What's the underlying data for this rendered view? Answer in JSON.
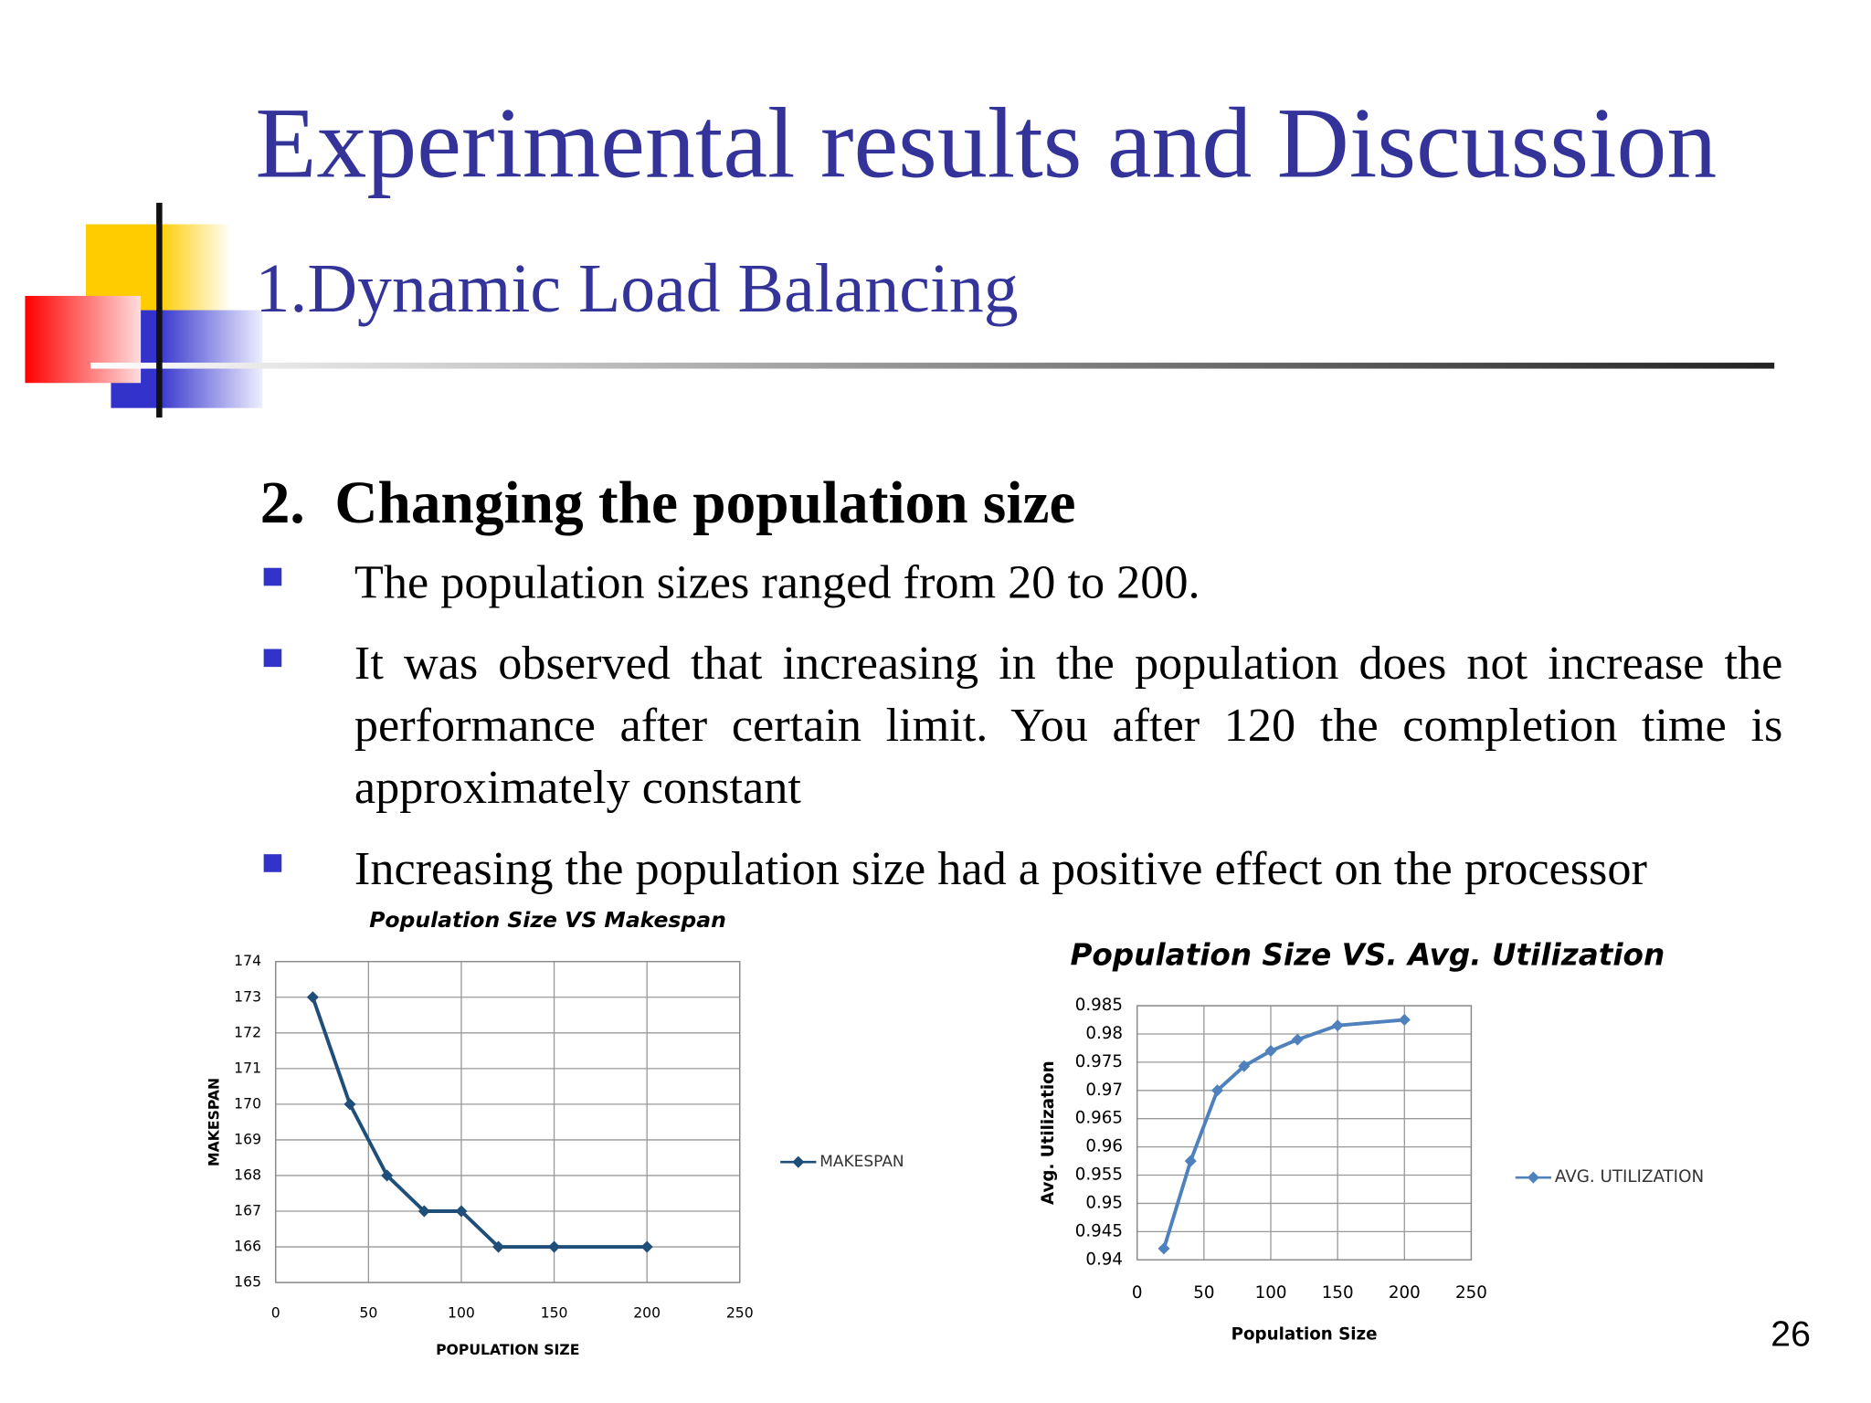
{
  "slide": {
    "title": "Experimental results and Discussion",
    "subtitle": "1.Dynamic Load Balancing",
    "heading": "2.  Changing the population size",
    "bullets": [
      "The population sizes ranged from 20 to 200.",
      "It was observed that increasing in the population does not increase the performance after certain limit. You after 120 the completion time is approximately constant",
      "Increasing the population size had a positive effect on the processor"
    ],
    "page_number": "26"
  },
  "chart_data": [
    {
      "type": "line",
      "title": "Population Size VS Makespan",
      "x_label": "POPULATION SIZE",
      "y_label": "MAKESPAN",
      "x": [
        20,
        40,
        60,
        80,
        100,
        120,
        150,
        200
      ],
      "series": [
        {
          "name": "MAKESPAN",
          "color": "#1f4e79",
          "values": [
            173,
            170,
            168,
            167,
            167,
            166,
            166,
            166
          ]
        }
      ],
      "xlim": [
        0,
        250
      ],
      "xticks": [
        0,
        50,
        100,
        150,
        200,
        250
      ],
      "ylim": [
        165,
        174
      ],
      "yticks": [
        165,
        166,
        167,
        168,
        169,
        170,
        171,
        172,
        173,
        174
      ],
      "grid": true,
      "legend": "right"
    },
    {
      "type": "line",
      "title": "Population Size VS. Avg. Utilization",
      "x_label": "Population Size",
      "y_label": "Avg. Utilization",
      "x": [
        20,
        40,
        60,
        80,
        100,
        120,
        150,
        200
      ],
      "series": [
        {
          "name": "AVG. UTILIZATION",
          "color": "#4f81bd",
          "values": [
            0.942,
            0.9575,
            0.97,
            0.9743,
            0.977,
            0.979,
            0.9815,
            0.9825
          ]
        }
      ],
      "xlim": [
        0,
        250
      ],
      "xticks": [
        0,
        50,
        100,
        150,
        200,
        250
      ],
      "ylim": [
        0.94,
        0.985
      ],
      "yticks": [
        0.94,
        0.945,
        0.95,
        0.955,
        0.96,
        0.965,
        0.97,
        0.975,
        0.98,
        0.985
      ],
      "grid": true,
      "legend": "right"
    }
  ]
}
